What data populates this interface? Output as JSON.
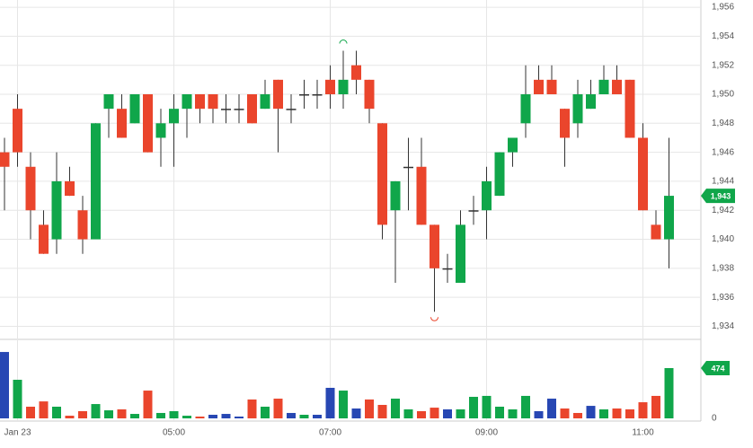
{
  "chart_data": {
    "type": "candlestick",
    "categories": [
      null,
      "Jan 23",
      null,
      null,
      null,
      null,
      null,
      null,
      null,
      null,
      null,
      null,
      null,
      "05:00",
      null,
      null,
      null,
      null,
      null,
      null,
      null,
      null,
      null,
      null,
      null,
      "07:00",
      null,
      null,
      null,
      null,
      null,
      null,
      null,
      null,
      null,
      null,
      null,
      "09:00",
      null,
      null,
      null,
      null,
      null,
      null,
      null,
      null,
      null,
      null,
      null,
      "11:00",
      null,
      null
    ],
    "open": [
      1946,
      1949,
      1945,
      1941,
      1940,
      1944,
      1942,
      1940,
      1949,
      1949,
      1948,
      1950,
      1947,
      1948,
      1949,
      1950,
      1950,
      1949,
      1949,
      1950,
      1949,
      1951,
      1949,
      1950,
      1950,
      1951,
      1950,
      1952,
      1951,
      1948,
      1942,
      1945,
      1945,
      1941,
      1938,
      1937,
      1942,
      1942,
      1943,
      1946,
      1948,
      1951,
      1951,
      1949,
      1948,
      1949,
      1950,
      1951,
      1951,
      1947,
      1941,
      1940
    ],
    "high": [
      1947,
      1950,
      1946,
      1942,
      1946,
      1945,
      1943,
      1948,
      1950,
      1950,
      1950,
      1950,
      1949,
      1950,
      1950,
      1950,
      1950,
      1950,
      1950,
      1950,
      1951,
      1951,
      1950,
      1951,
      1951,
      1952,
      1953,
      1953,
      1951,
      1948,
      1944,
      1947,
      1947,
      1941,
      1939,
      1942,
      1943,
      1945,
      1946,
      1947,
      1952,
      1952,
      1952,
      1949,
      1951,
      1951,
      1952,
      1952,
      1951,
      1948,
      1942,
      1947
    ],
    "low": [
      1942,
      1945,
      1940,
      1939,
      1939,
      1943,
      1939,
      1940,
      1947,
      1947,
      1948,
      1946,
      1945,
      1945,
      1947,
      1948,
      1948,
      1948,
      1948,
      1948,
      1949,
      1946,
      1948,
      1949,
      1949,
      1949,
      1949,
      1950,
      1948,
      1940,
      1937,
      1942,
      1941,
      1935,
      1937,
      1937,
      1941,
      1940,
      1943,
      1945,
      1947,
      1950,
      1950,
      1945,
      1947,
      1949,
      1950,
      1950,
      1947,
      1942,
      1940,
      1938
    ],
    "close": [
      1945,
      1946,
      1942,
      1939,
      1944,
      1943,
      1940,
      1948,
      1950,
      1947,
      1950,
      1946,
      1948,
      1949,
      1950,
      1949,
      1949,
      1949,
      1949,
      1948,
      1950,
      1949,
      1949,
      1950,
      1950,
      1950,
      1951,
      1951,
      1949,
      1941,
      1944,
      1945,
      1941,
      1938,
      1938,
      1941,
      1942,
      1944,
      1946,
      1947,
      1950,
      1950,
      1950,
      1947,
      1950,
      1950,
      1951,
      1950,
      1947,
      1942,
      1940,
      1943
    ],
    "up_color": "#10a64a",
    "down_color": "#ea452c",
    "ylim": [
      1933.1,
      1956.5
    ],
    "yticks": [
      {
        "value": 1934,
        "label": "1,934"
      },
      {
        "value": 1936,
        "label": "1,936"
      },
      {
        "value": 1938,
        "label": "1,938"
      },
      {
        "value": 1940,
        "label": "1,940"
      },
      {
        "value": 1942,
        "label": "1,942"
      },
      {
        "value": 1944,
        "label": "1,944"
      },
      {
        "value": 1946,
        "label": "1,946"
      },
      {
        "value": 1948,
        "label": "1,948"
      },
      {
        "value": 1950,
        "label": "1,950"
      },
      {
        "value": 1952,
        "label": "1,952"
      },
      {
        "value": 1954,
        "label": "1,954"
      },
      {
        "value": 1956,
        "label": "1,956"
      }
    ],
    "last_price_label": "1,943",
    "volume": {
      "values": [
        626,
        364,
        110,
        160,
        110,
        25,
        68,
        135,
        76,
        85,
        42,
        262,
        51,
        68,
        25,
        17,
        34,
        42,
        17,
        178,
        110,
        186,
        51,
        34,
        34,
        288,
        262,
        93,
        178,
        127,
        186,
        85,
        68,
        101,
        85,
        85,
        203,
        212,
        110,
        85,
        212,
        68,
        186,
        93,
        51,
        118,
        85,
        93,
        85,
        152,
        212,
        474
      ],
      "colors": [
        "#2747b3",
        "#10a64a",
        "#ea452c",
        "#ea452c",
        "#10a64a",
        "#ea452c",
        "#ea452c",
        "#10a64a",
        "#10a64a",
        "#ea452c",
        "#10a64a",
        "#ea452c",
        "#10a64a",
        "#10a64a",
        "#10a64a",
        "#ea452c",
        "#2747b3",
        "#2747b3",
        "#2747b3",
        "#ea452c",
        "#10a64a",
        "#ea452c",
        "#2747b3",
        "#10a64a",
        "#2747b3",
        "#2747b3",
        "#10a64a",
        "#2747b3",
        "#ea452c",
        "#ea452c",
        "#10a64a",
        "#10a64a",
        "#ea452c",
        "#ea452c",
        "#2747b3",
        "#10a64a",
        "#10a64a",
        "#10a64a",
        "#10a64a",
        "#10a64a",
        "#10a64a",
        "#2747b3",
        "#2747b3",
        "#ea452c",
        "#ea452c",
        "#2747b3",
        "#10a64a",
        "#ea452c",
        "#ea452c",
        "#ea452c",
        "#ea452c",
        "#10a64a"
      ],
      "ylim": [
        0,
        728
      ],
      "yticks": [
        0
      ],
      "last_label": "474"
    },
    "grid": true
  }
}
